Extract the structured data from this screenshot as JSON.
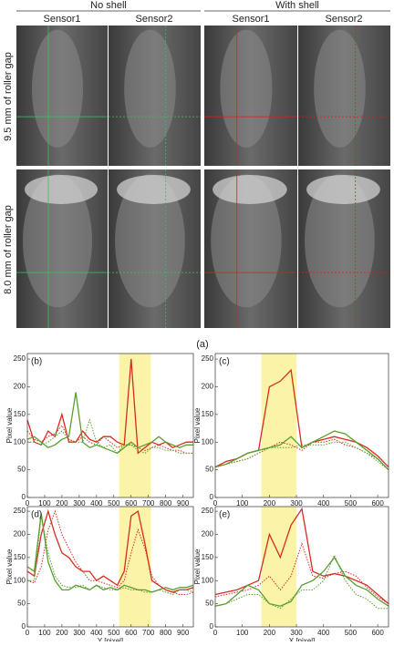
{
  "panel_a": {
    "groups": [
      "No shell",
      "With shell"
    ],
    "sensors": [
      "Sensor1",
      "Sensor2",
      "Sensor1",
      "Sensor2"
    ],
    "rows": [
      "9.5 mm of roller gap",
      "8.0 mm of roller gap"
    ],
    "label": "(a)"
  },
  "chart_data": [
    {
      "type": "line",
      "label": "(b)",
      "y_label": "Pixel value",
      "xlim": [
        0,
        960
      ],
      "ylim": [
        0,
        260
      ],
      "xticks": [
        0,
        100,
        200,
        300,
        400,
        500,
        600,
        700,
        800,
        900
      ],
      "yticks": [
        0,
        50,
        100,
        150,
        200,
        250
      ],
      "highlight": [
        530,
        715
      ],
      "highlight_color": "#fbf3a8",
      "x": [
        0,
        40,
        80,
        120,
        160,
        200,
        240,
        280,
        320,
        360,
        400,
        440,
        480,
        520,
        560,
        600,
        640,
        680,
        720,
        760,
        800,
        840,
        880,
        920,
        960
      ],
      "series": [
        {
          "color": "#d62d20",
          "dash": false,
          "values": [
            140,
            100,
            95,
            120,
            110,
            150,
            100,
            100,
            120,
            105,
            100,
            110,
            110,
            100,
            95,
            250,
            80,
            90,
            100,
            95,
            100,
            90,
            95,
            100,
            100
          ]
        },
        {
          "color": "#d62d20",
          "dash": true,
          "values": [
            120,
            105,
            100,
            110,
            115,
            130,
            105,
            100,
            110,
            100,
            95,
            110,
            100,
            90,
            95,
            95,
            90,
            85,
            90,
            95,
            90,
            85,
            85,
            80,
            80
          ]
        },
        {
          "color": "#5a9e2f",
          "dash": false,
          "values": [
            105,
            110,
            100,
            90,
            95,
            105,
            110,
            190,
            100,
            90,
            95,
            90,
            85,
            80,
            90,
            100,
            90,
            95,
            100,
            110,
            100,
            95,
            90,
            95,
            95
          ]
        },
        {
          "color": "#5a9e2f",
          "dash": true,
          "values": [
            100,
            100,
            95,
            100,
            110,
            120,
            105,
            100,
            100,
            140,
            100,
            90,
            95,
            80,
            95,
            95,
            85,
            80,
            90,
            90,
            85,
            85,
            80,
            80,
            80
          ]
        }
      ]
    },
    {
      "type": "line",
      "label": "(c)",
      "y_label": "Pixel value",
      "xlim": [
        0,
        640
      ],
      "ylim": [
        0,
        260
      ],
      "xticks": [
        0,
        100,
        200,
        300,
        400,
        500,
        600
      ],
      "yticks": [
        0,
        50,
        100,
        150,
        200,
        250
      ],
      "highlight": [
        170,
        300
      ],
      "highlight_color": "#fbf3a8",
      "x": [
        0,
        40,
        80,
        120,
        160,
        200,
        240,
        280,
        320,
        360,
        400,
        440,
        480,
        520,
        560,
        600,
        640
      ],
      "series": [
        {
          "color": "#d62d20",
          "dash": false,
          "values": [
            55,
            65,
            70,
            80,
            85,
            200,
            210,
            230,
            90,
            100,
            105,
            110,
            105,
            100,
            90,
            75,
            55
          ]
        },
        {
          "color": "#d62d20",
          "dash": true,
          "values": [
            55,
            60,
            65,
            70,
            80,
            90,
            100,
            95,
            85,
            100,
            100,
            105,
            95,
            90,
            80,
            70,
            50
          ]
        },
        {
          "color": "#5a9e2f",
          "dash": false,
          "values": [
            55,
            60,
            70,
            80,
            85,
            90,
            95,
            110,
            90,
            100,
            110,
            120,
            115,
            100,
            85,
            70,
            50
          ]
        },
        {
          "color": "#5a9e2f",
          "dash": true,
          "values": [
            55,
            60,
            65,
            70,
            80,
            90,
            90,
            90,
            95,
            95,
            95,
            100,
            100,
            90,
            80,
            65,
            50
          ]
        }
      ]
    },
    {
      "type": "line",
      "label": "(d)",
      "y_label": "Pixel value",
      "x_label": "Y [pixel]",
      "xlim": [
        0,
        960
      ],
      "ylim": [
        0,
        260
      ],
      "xticks": [
        0,
        100,
        200,
        300,
        400,
        500,
        600,
        700,
        800,
        900
      ],
      "yticks": [
        0,
        50,
        100,
        150,
        200,
        250
      ],
      "highlight": [
        530,
        715
      ],
      "highlight_color": "#fbf3a8",
      "x": [
        0,
        40,
        80,
        120,
        160,
        200,
        240,
        280,
        320,
        360,
        400,
        440,
        480,
        520,
        560,
        600,
        640,
        680,
        720,
        760,
        800,
        840,
        880,
        920,
        960
      ],
      "series": [
        {
          "color": "#d62d20",
          "dash": false,
          "values": [
            120,
            110,
            200,
            250,
            200,
            160,
            150,
            130,
            120,
            120,
            100,
            110,
            100,
            90,
            120,
            240,
            250,
            180,
            100,
            90,
            80,
            75,
            80,
            80,
            85
          ]
        },
        {
          "color": "#d62d20",
          "dash": true,
          "values": [
            100,
            95,
            130,
            210,
            250,
            200,
            170,
            140,
            120,
            100,
            100,
            95,
            90,
            85,
            100,
            160,
            210,
            170,
            110,
            90,
            80,
            75,
            70,
            70,
            75
          ]
        },
        {
          "color": "#5a9e2f",
          "dash": false,
          "values": [
            130,
            120,
            245,
            140,
            100,
            80,
            80,
            90,
            85,
            80,
            90,
            80,
            85,
            80,
            90,
            85,
            80,
            80,
            75,
            80,
            85,
            80,
            85,
            85,
            90
          ]
        },
        {
          "color": "#5a9e2f",
          "dash": true,
          "values": [
            100,
            100,
            240,
            160,
            110,
            90,
            85,
            85,
            90,
            80,
            90,
            85,
            80,
            80,
            85,
            80,
            80,
            75,
            75,
            80,
            75,
            70,
            80,
            80,
            75
          ]
        }
      ]
    },
    {
      "type": "line",
      "label": "(e)",
      "y_label": "Pixel value",
      "x_label": "X [pixel]",
      "xlim": [
        0,
        640
      ],
      "ylim": [
        0,
        260
      ],
      "xticks": [
        0,
        100,
        200,
        300,
        400,
        500,
        600
      ],
      "yticks": [
        0,
        50,
        100,
        150,
        200,
        250
      ],
      "highlight": [
        170,
        300
      ],
      "highlight_color": "#fbf3a8",
      "x": [
        0,
        40,
        80,
        120,
        160,
        200,
        240,
        280,
        320,
        360,
        400,
        440,
        480,
        520,
        560,
        600,
        640
      ],
      "series": [
        {
          "color": "#d62d20",
          "dash": false,
          "values": [
            70,
            75,
            80,
            90,
            100,
            200,
            150,
            220,
            255,
            120,
            110,
            115,
            110,
            100,
            90,
            70,
            50
          ]
        },
        {
          "color": "#d62d20",
          "dash": true,
          "values": [
            65,
            70,
            75,
            80,
            90,
            110,
            80,
            110,
            180,
            110,
            105,
            115,
            120,
            110,
            85,
            65,
            50
          ]
        },
        {
          "color": "#5a9e2f",
          "dash": false,
          "values": [
            45,
            50,
            70,
            90,
            80,
            50,
            45,
            55,
            90,
            100,
            120,
            150,
            110,
            90,
            80,
            60,
            45
          ]
        },
        {
          "color": "#5a9e2f",
          "dash": true,
          "values": [
            45,
            50,
            60,
            70,
            70,
            50,
            40,
            60,
            80,
            80,
            100,
            155,
            100,
            70,
            60,
            40,
            40
          ]
        }
      ]
    }
  ]
}
